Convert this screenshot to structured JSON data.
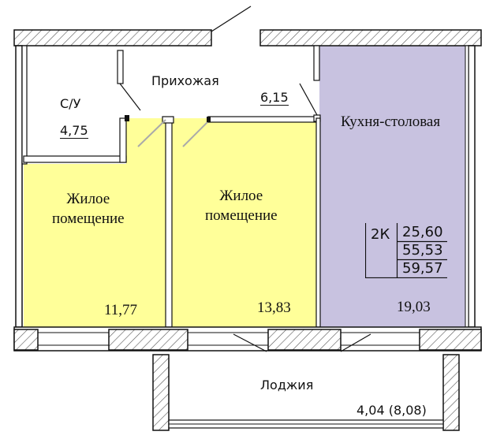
{
  "floor_plan": {
    "colors": {
      "living": "#ffff99",
      "kitchen": "#c8c2e0",
      "wall": "#111111",
      "hatch": "#555555"
    },
    "rooms": [
      {
        "id": "bathroom",
        "name": "С/У",
        "area": "4,75"
      },
      {
        "id": "hallway",
        "name": "Прихожая",
        "area": "6,15"
      },
      {
        "id": "kitchen",
        "name": "Кухня-столовая",
        "area": "19,03"
      },
      {
        "id": "living1",
        "name": "Жилое\nпомещение",
        "area": "11,77"
      },
      {
        "id": "living2",
        "name": "Жилое\nпомещение",
        "area": "13,83"
      },
      {
        "id": "loggia",
        "name": "Лоджия",
        "area": "4,04 (8,08)"
      }
    ],
    "summary": {
      "type": "2К",
      "living_area": "25,60",
      "total_area": "55,53",
      "total_with_loggia": "59,57"
    }
  }
}
